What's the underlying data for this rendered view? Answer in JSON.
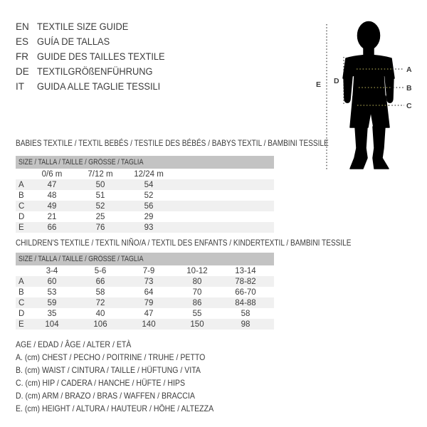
{
  "languages": [
    {
      "code": "EN",
      "label": "TEXTILE SIZE GUIDE"
    },
    {
      "code": "ES",
      "label": "GUÍA DE TALLAS"
    },
    {
      "code": "FR",
      "label": "GUIDE DES TAILLES TEXTILE"
    },
    {
      "code": "DE",
      "label": "TEXTILGRÖßENFÜHRUNG"
    },
    {
      "code": "IT",
      "label": "GUIDA ALLE TAGLIE TESSILI"
    }
  ],
  "figure": {
    "label_a": "A",
    "label_b": "B",
    "label_c": "C",
    "label_d": "D",
    "label_e": "E"
  },
  "babies_table": {
    "title": "BABIES TEXTILE / TEXTIL BEBÉS / TESTILE DES BÉBÉS / BABYS TEXTIL / BAMBINI TESSILE",
    "header": "SIZE / TALLA / TAILLE / GRÖSSE / TAGLIA",
    "columns": [
      "0/6 m",
      "7/12 m",
      "12/24 m"
    ],
    "rows": [
      {
        "label": "A",
        "values": [
          "47",
          "50",
          "54"
        ]
      },
      {
        "label": "B",
        "values": [
          "48",
          "51",
          "52"
        ]
      },
      {
        "label": "C",
        "values": [
          "49",
          "52",
          "56"
        ]
      },
      {
        "label": "D",
        "values": [
          "21",
          "25",
          "29"
        ]
      },
      {
        "label": "E",
        "values": [
          "66",
          "76",
          "93"
        ]
      }
    ]
  },
  "children_table": {
    "title": "CHILDREN'S TEXTILE / TEXTIL NIÑO/A / TEXTIL DES ENFANTS / KINDERTEXTIL / BAMBINI TESSILE",
    "header": "SIZE / TALLA / TAILLE / GRÖSSE / TAGLIA",
    "columns": [
      "3-4",
      "5-6",
      "7-9",
      "10-12",
      "13-14"
    ],
    "rows": [
      {
        "label": "A",
        "values": [
          "60",
          "66",
          "73",
          "80",
          "78-82"
        ]
      },
      {
        "label": "B",
        "values": [
          "53",
          "58",
          "64",
          "70",
          "66-70"
        ]
      },
      {
        "label": "C",
        "values": [
          "59",
          "72",
          "79",
          "86",
          "84-88"
        ]
      },
      {
        "label": "D",
        "values": [
          "35",
          "40",
          "47",
          "55",
          "58"
        ]
      },
      {
        "label": "E",
        "values": [
          "104",
          "106",
          "140",
          "150",
          "98"
        ]
      }
    ]
  },
  "legend": {
    "lines": [
      "AGE / EDAD / ÂGE / ALTER / ETÀ",
      "A. (cm) CHEST / PECHO / POITRINE / TRUHE / PETTO",
      "B. (cm) WAIST / CINTURA / TAILLE / HÜFTUNG / VITA",
      "C. (cm) HIP / CADERA / HANCHE / HÜFTE / HIPS",
      "D. (cm) ARM / BRAZO / BRAS / WAFFEN / BRACCIA",
      "E. (cm) HEIGHT / ALTURA / HAUTEUR / HÖHE / ALTEZZA"
    ]
  },
  "colors": {
    "text": "#3b3b3b",
    "silhouette": "#000000",
    "table_header_bg": "#c3c3c3",
    "row_alt_bg": "#f0f0f0",
    "measure_dots": "#3b3b3b",
    "measure_dots_on_body": "#a09a4e"
  }
}
